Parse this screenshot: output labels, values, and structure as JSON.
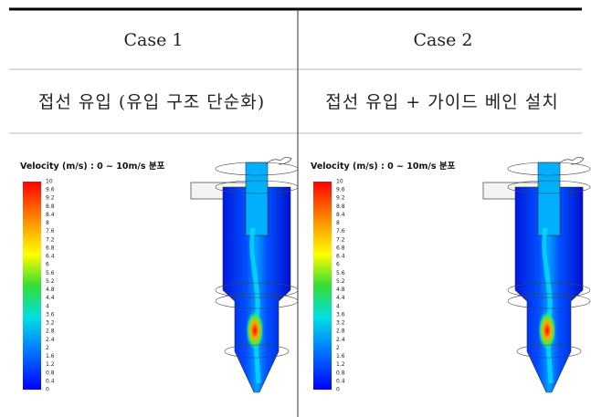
{
  "table": {
    "headers": [
      "Case 1",
      "Case 2"
    ],
    "rows": [
      [
        "접선 유입 (유입 구조 단순화)",
        "접선 유입 + 가이드 베인 설치"
      ]
    ]
  },
  "figures": [
    {
      "legend_title": "Velocity (m/s) : 0 ~ 10m/s 분포",
      "legend_ticks": [
        "10",
        "9.6",
        "9.2",
        "8.8",
        "8.4",
        "8",
        "7.6",
        "7.2",
        "6.8",
        "6.4",
        "6",
        "5.6",
        "5.2",
        "4.8",
        "4.4",
        "4",
        "3.6",
        "3.2",
        "2.8",
        "2.4",
        "2",
        "1.6",
        "1.2",
        "0.8",
        "0.4",
        "0"
      ]
    },
    {
      "legend_title": "Velocity (m/s) : 0 ~ 10m/s 분포",
      "legend_ticks": [
        "10",
        "9.6",
        "9.2",
        "8.8",
        "8.4",
        "8",
        "7.6",
        "7.2",
        "6.8",
        "6.4",
        "6",
        "5.6",
        "5.2",
        "4.8",
        "4.4",
        "4",
        "3.6",
        "3.2",
        "2.8",
        "2.4",
        "2",
        "1.6",
        "1.2",
        "0.8",
        "0.4",
        "0"
      ]
    }
  ]
}
